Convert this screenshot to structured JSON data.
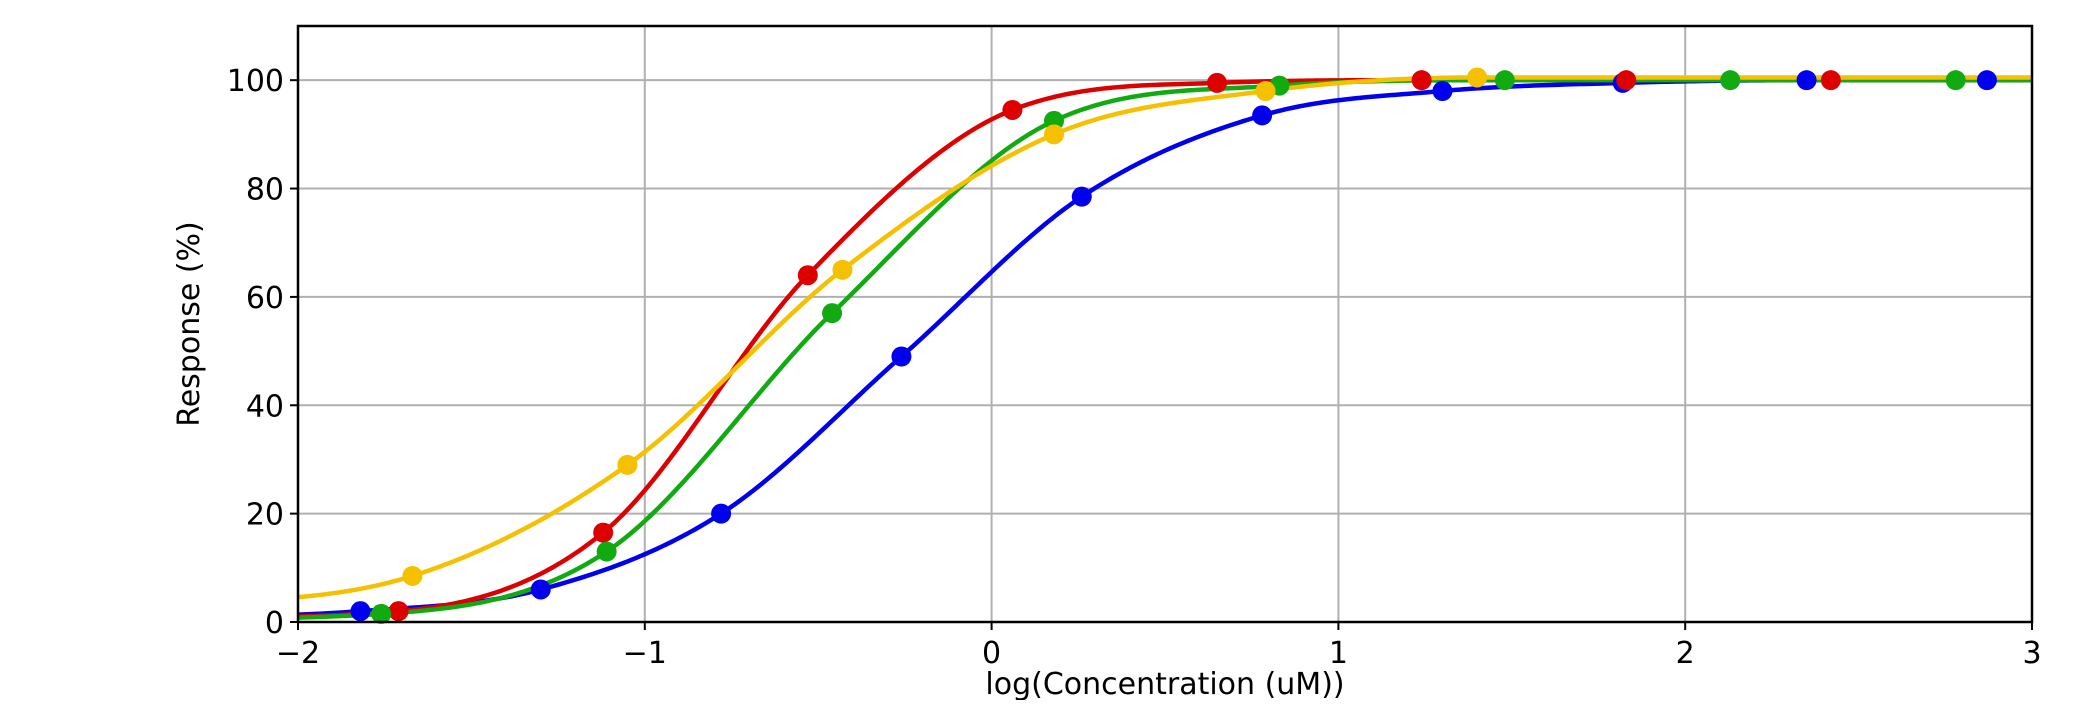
{
  "chart_data": {
    "type": "line",
    "title": "",
    "xlabel": "log(Concentration (uM))",
    "ylabel": "Response (%)",
    "xlim": [
      -2,
      3
    ],
    "ylim": [
      0,
      110
    ],
    "x_ticks": [
      -2,
      -1,
      0,
      1,
      2,
      3
    ],
    "x_tick_labels": [
      "−2",
      "−1",
      "0",
      "1",
      "2",
      "3"
    ],
    "y_ticks": [
      0,
      20,
      40,
      60,
      80,
      100
    ],
    "y_tick_labels": [
      "0",
      "20",
      "40",
      "60",
      "80",
      "100"
    ],
    "grid": true,
    "legend": "none",
    "series": [
      {
        "color": "#0000ee",
        "points": [
          {
            "x": -1.82,
            "y": 2
          },
          {
            "x": -1.3,
            "y": 6
          },
          {
            "x": -0.78,
            "y": 20
          },
          {
            "x": -0.26,
            "y": 49
          },
          {
            "x": 0.26,
            "y": 78.5
          },
          {
            "x": 0.78,
            "y": 93.5
          },
          {
            "x": 1.3,
            "y": 98
          },
          {
            "x": 1.82,
            "y": 99.5
          },
          {
            "x": 2.35,
            "y": 100
          },
          {
            "x": 2.87,
            "y": 100
          }
        ]
      },
      {
        "color": "#dd0000",
        "points": [
          {
            "x": -1.71,
            "y": 2
          },
          {
            "x": -1.12,
            "y": 16.5
          },
          {
            "x": -0.53,
            "y": 64
          },
          {
            "x": 0.06,
            "y": 94.5
          },
          {
            "x": 0.65,
            "y": 99.5
          },
          {
            "x": 1.24,
            "y": 100
          },
          {
            "x": 1.83,
            "y": 100
          },
          {
            "x": 2.42,
            "y": 100
          }
        ]
      },
      {
        "color": "#11aa11",
        "points": [
          {
            "x": -1.76,
            "y": 1.5
          },
          {
            "x": -1.11,
            "y": 13
          },
          {
            "x": -0.46,
            "y": 57
          },
          {
            "x": 0.18,
            "y": 92.5
          },
          {
            "x": 0.83,
            "y": 99
          },
          {
            "x": 1.48,
            "y": 100
          },
          {
            "x": 2.13,
            "y": 100
          },
          {
            "x": 2.78,
            "y": 100
          }
        ]
      },
      {
        "color": "#f5c000",
        "points": [
          {
            "x": -1.67,
            "y": 8.5
          },
          {
            "x": -1.05,
            "y": 29
          },
          {
            "x": -0.43,
            "y": 65
          },
          {
            "x": 0.18,
            "y": 90
          },
          {
            "x": 0.79,
            "y": 98
          },
          {
            "x": 1.4,
            "y": 100.5
          }
        ]
      }
    ]
  }
}
